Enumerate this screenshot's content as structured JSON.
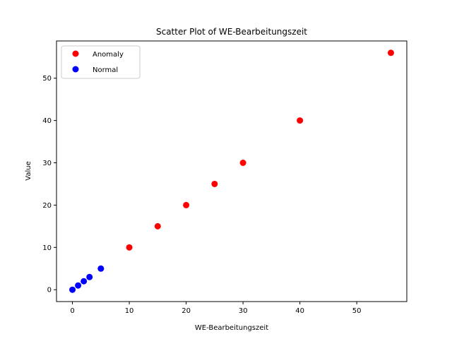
{
  "chart_data": {
    "type": "scatter",
    "title": "Scatter Plot of WE-Bearbeitungszeit",
    "xlabel": "WE-Bearbeitungszeit",
    "ylabel": "Value",
    "xlim": [
      -2.8,
      58.8
    ],
    "ylim": [
      -2.8,
      58.8
    ],
    "xticks": [
      0,
      10,
      20,
      30,
      40,
      50
    ],
    "yticks": [
      0,
      10,
      20,
      30,
      40,
      50
    ],
    "grid": false,
    "legend_position": "top-left",
    "series": [
      {
        "name": "Anomaly",
        "color": "#ff0000",
        "points": [
          [
            10,
            10
          ],
          [
            15,
            15
          ],
          [
            20,
            20
          ],
          [
            25,
            25
          ],
          [
            30,
            30
          ],
          [
            40,
            40
          ],
          [
            56,
            56
          ]
        ]
      },
      {
        "name": "Normal",
        "color": "#0000ff",
        "points": [
          [
            0,
            0
          ],
          [
            1,
            1
          ],
          [
            2,
            2
          ],
          [
            3,
            3
          ],
          [
            5,
            5
          ]
        ]
      }
    ]
  }
}
